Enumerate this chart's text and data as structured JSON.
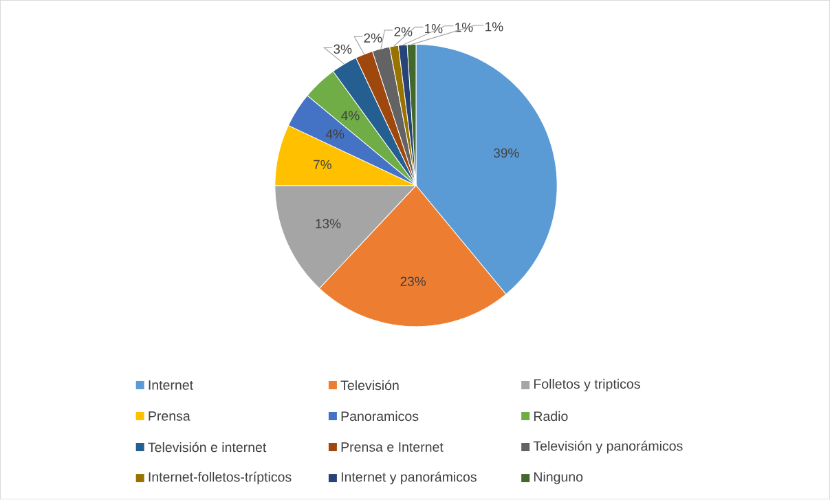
{
  "chart_data": {
    "type": "pie",
    "categories": [
      "Internet",
      "Televisión",
      "Folletos y tripticos",
      "Prensa",
      "Panoramicos",
      "Radio",
      "Televisión e internet",
      "Prensa e Internet",
      "Televisión y panorámicos",
      "Internet-folletos-trípticos",
      "Internet y panorámicos",
      "Ninguno"
    ],
    "values": [
      39,
      23,
      13,
      7,
      4,
      4,
      3,
      2,
      2,
      1,
      1,
      1
    ],
    "value_labels": [
      "39%",
      "23%",
      "13%",
      "7%",
      "4%",
      "4%",
      "3%",
      "2%",
      "2%",
      "1%",
      "1%",
      "1%"
    ],
    "colors": [
      "#5b9bd5",
      "#ed7d31",
      "#a5a5a5",
      "#ffc000",
      "#4472c4",
      "#70ad47",
      "#255e91",
      "#9e480e",
      "#636363",
      "#997300",
      "#264478",
      "#43682b"
    ],
    "legend": "bottom"
  }
}
